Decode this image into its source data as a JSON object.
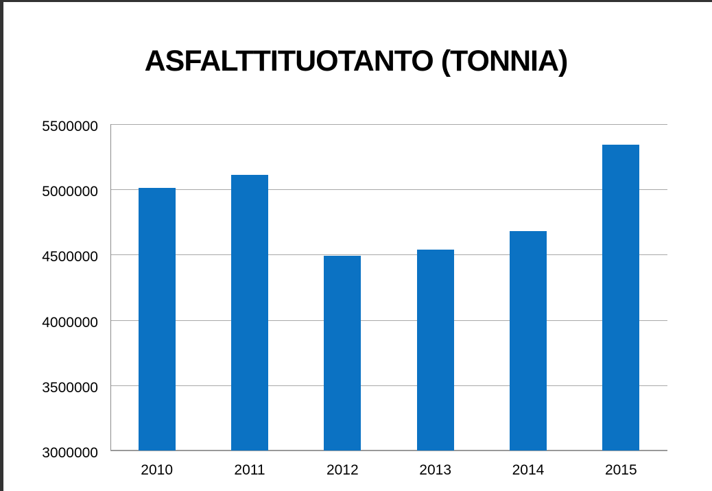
{
  "page": {
    "background": "#ffffff",
    "frame_color": "#333333"
  },
  "chart_data": {
    "type": "bar",
    "title": "ASFALTTITUOTANTO (TONNIA)",
    "categories": [
      "2010",
      "2011",
      "2012",
      "2013",
      "2014",
      "2015"
    ],
    "values": [
      5010000,
      5110000,
      4490000,
      4540000,
      4680000,
      5340000
    ],
    "xlabel": "",
    "ylabel": "",
    "ylim": [
      3000000,
      5500000
    ],
    "ytick_interval": 500000,
    "ytick_labels": [
      "3000000",
      "3500000",
      "4000000",
      "4500000",
      "5000000",
      "5500000"
    ],
    "grid": true,
    "legend": false,
    "bar_color": "#0b72c3",
    "gridline_color": "#a8a8a8",
    "axis_color": "#8c8c8c",
    "text_color": "#000000"
  }
}
